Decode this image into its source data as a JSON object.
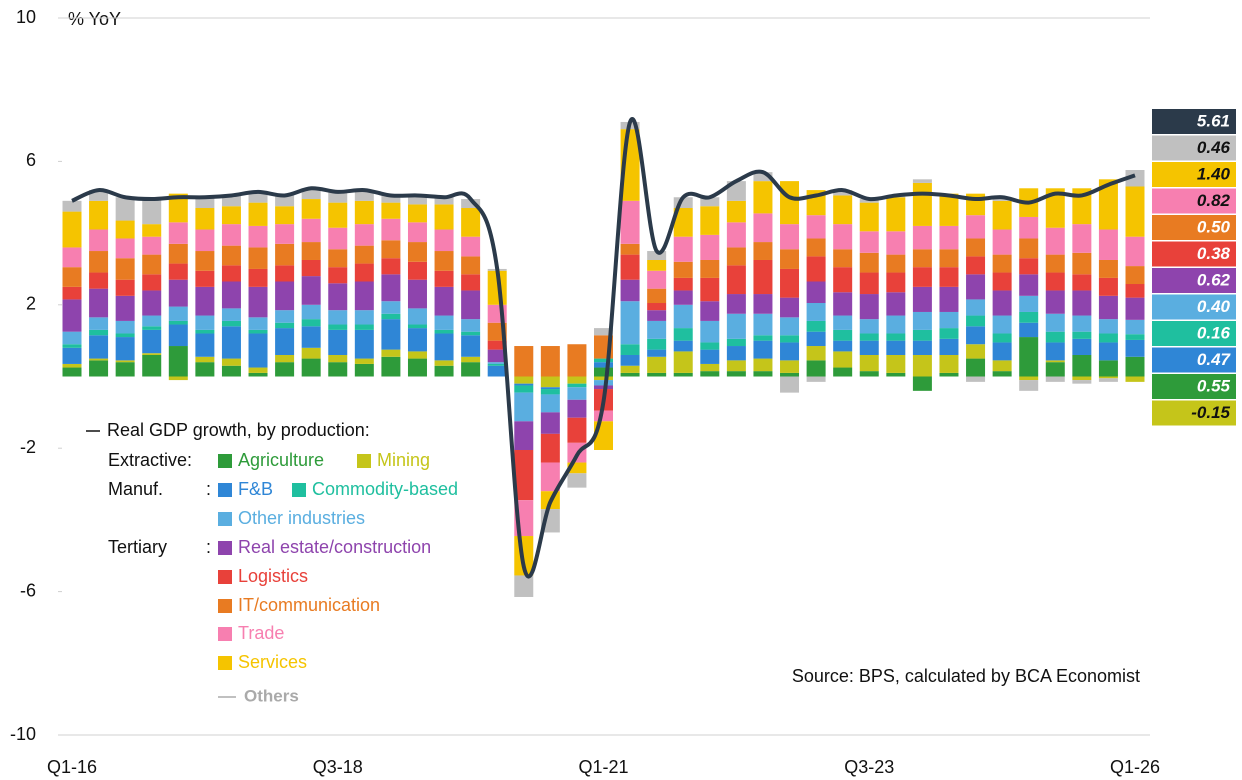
{
  "chart_data": {
    "type": "stacked_bar_line",
    "y_label": "% YoY",
    "source": "Source: BPS, calculated by BCA Economist",
    "legend_groups": [
      "Extractive:",
      "Manuf.",
      ":",
      "Tertiary",
      ":"
    ],
    "categories": [
      "Q1-16",
      null,
      null,
      null,
      null,
      null,
      null,
      null,
      null,
      null,
      "Q3-18",
      null,
      null,
      null,
      null,
      null,
      null,
      null,
      null,
      null,
      "Q1-21",
      null,
      null,
      null,
      null,
      null,
      null,
      null,
      null,
      null,
      "Q3-23",
      null,
      null,
      null,
      null,
      null,
      null,
      null,
      null,
      null,
      "Q1-26"
    ],
    "ylim": [
      -10,
      10
    ],
    "yticks": [
      10,
      6,
      2,
      -2,
      -6,
      -10
    ],
    "series": [
      {
        "name": "Agriculture",
        "color": "#2e9b3a",
        "values": [
          0.25,
          0.45,
          0.4,
          0.6,
          0.85,
          0.4,
          0.3,
          0.1,
          0.4,
          0.5,
          0.4,
          0.35,
          0.55,
          0.5,
          0.3,
          0.4,
          0,
          0,
          0,
          0,
          0.25,
          0.1,
          0.1,
          0.1,
          0.15,
          0.15,
          0.15,
          0.1,
          0.45,
          0.25,
          0.15,
          0.1,
          -0.4,
          0.1,
          0.5,
          0.15,
          1.1,
          0.4,
          0.6,
          0.45,
          0.55
        ]
      },
      {
        "name": "Mining",
        "color": "#c5c51a",
        "values": [
          0.1,
          0.05,
          0.05,
          0.05,
          -0.1,
          0.15,
          0.2,
          0.15,
          0.2,
          0.3,
          0.2,
          0.15,
          0.2,
          0.2,
          0.15,
          0.15,
          0,
          -0.2,
          -0.3,
          -0.2,
          -0.1,
          0.2,
          0.45,
          0.6,
          0.2,
          0.3,
          0.35,
          0.35,
          0.4,
          0.45,
          0.45,
          0.5,
          0.6,
          0.5,
          0.4,
          0.3,
          -0.1,
          0.05,
          -0.1,
          -0.05,
          -0.15
        ]
      },
      {
        "name": "F&B",
        "color": "#2f86d6",
        "values": [
          0.45,
          0.65,
          0.65,
          0.65,
          0.6,
          0.65,
          0.9,
          0.95,
          0.75,
          0.6,
          0.7,
          0.8,
          0.85,
          0.65,
          0.75,
          0.6,
          0.3,
          -0.05,
          -0.05,
          0,
          0.15,
          0.3,
          0.2,
          0.3,
          0.4,
          0.4,
          0.5,
          0.5,
          0.4,
          0.3,
          0.4,
          0.4,
          0.4,
          0.45,
          0.5,
          0.5,
          0.4,
          0.5,
          0.45,
          0.5,
          0.47
        ]
      },
      {
        "name": "Commodity-based",
        "color": "#1fbf9f",
        "values": [
          0.1,
          0.15,
          0.1,
          0.1,
          0.1,
          0.1,
          0.15,
          0.1,
          0.15,
          0.2,
          0.15,
          0.15,
          0.15,
          0.1,
          0.1,
          0.1,
          0.05,
          -0.2,
          -0.15,
          -0.1,
          0.1,
          0.3,
          0.3,
          0.35,
          0.2,
          0.2,
          0.15,
          0.2,
          0.3,
          0.3,
          0.2,
          0.2,
          0.3,
          0.3,
          0.3,
          0.25,
          0.3,
          0.3,
          0.2,
          0.25,
          0.16
        ]
      },
      {
        "name": "Other industries",
        "color": "#5aaee0",
        "values": [
          0.35,
          0.35,
          0.35,
          0.3,
          0.4,
          0.4,
          0.35,
          0.35,
          0.35,
          0.4,
          0.4,
          0.4,
          0.35,
          0.45,
          0.4,
          0.35,
          0.05,
          -0.8,
          -0.5,
          -0.35,
          -0.15,
          1.2,
          0.5,
          0.65,
          0.6,
          0.7,
          0.6,
          0.5,
          0.5,
          0.4,
          0.4,
          0.5,
          0.5,
          0.45,
          0.45,
          0.5,
          0.45,
          0.5,
          0.45,
          0.4,
          0.4
        ],
        "value_labels": [
          null,
          null,
          null,
          null,
          null,
          null,
          null,
          null,
          null,
          null,
          null,
          null,
          null,
          null,
          null,
          null,
          null,
          null,
          null,
          null,
          null,
          null,
          null,
          null,
          null,
          null,
          null,
          null,
          null,
          null,
          null,
          null,
          null,
          null,
          null,
          null,
          null,
          null,
          null,
          null,
          "0.40"
        ]
      },
      {
        "name": "Real estate/construction",
        "color": "#8e44ad",
        "values": [
          0.9,
          0.8,
          0.7,
          0.7,
          0.75,
          0.8,
          0.75,
          0.85,
          0.8,
          0.8,
          0.75,
          0.8,
          0.75,
          0.8,
          0.8,
          0.8,
          0.35,
          -0.8,
          -0.6,
          -0.5,
          -0.1,
          0.6,
          0.3,
          0.4,
          0.55,
          0.55,
          0.55,
          0.55,
          0.6,
          0.65,
          0.7,
          0.65,
          0.7,
          0.7,
          0.7,
          0.7,
          0.6,
          0.65,
          0.7,
          0.65,
          0.62
        ]
      },
      {
        "name": "Logistics",
        "color": "#e8413a",
        "values": [
          0.35,
          0.45,
          0.45,
          0.45,
          0.45,
          0.45,
          0.45,
          0.5,
          0.45,
          0.45,
          0.45,
          0.5,
          0.45,
          0.5,
          0.45,
          0.45,
          0.25,
          -1.4,
          -0.8,
          -0.7,
          -0.6,
          0.7,
          0.2,
          0.35,
          0.65,
          0.8,
          0.95,
          0.8,
          0.7,
          0.7,
          0.6,
          0.55,
          0.55,
          0.55,
          0.5,
          0.5,
          0.45,
          0.5,
          0.45,
          0.5,
          0.38
        ]
      },
      {
        "name": "IT/communication",
        "color": "#e87b22",
        "values": [
          0.55,
          0.6,
          0.6,
          0.55,
          0.55,
          0.55,
          0.55,
          0.6,
          0.6,
          0.5,
          0.5,
          0.5,
          0.5,
          0.55,
          0.55,
          0.5,
          0.5,
          0.85,
          0.85,
          0.9,
          0.65,
          0.3,
          0.4,
          0.45,
          0.5,
          0.5,
          0.5,
          0.55,
          0.5,
          0.5,
          0.55,
          0.5,
          0.5,
          0.5,
          0.5,
          0.5,
          0.55,
          0.5,
          0.6,
          0.5,
          0.5
        ],
        "value_labels": [
          null,
          null,
          null,
          null,
          null,
          null,
          null,
          null,
          null,
          null,
          null,
          null,
          null,
          null,
          null,
          null,
          null,
          null,
          null,
          null,
          null,
          null,
          null,
          null,
          null,
          null,
          null,
          null,
          null,
          null,
          null,
          null,
          null,
          null,
          null,
          null,
          null,
          null,
          null,
          null,
          "0.50"
        ]
      },
      {
        "name": "Trade",
        "color": "#f77fb0",
        "values": [
          0.55,
          0.6,
          0.55,
          0.5,
          0.6,
          0.6,
          0.6,
          0.6,
          0.55,
          0.65,
          0.6,
          0.6,
          0.6,
          0.55,
          0.6,
          0.55,
          0.5,
          -1.0,
          -0.8,
          -0.55,
          -0.3,
          1.2,
          0.5,
          0.7,
          0.7,
          0.7,
          0.8,
          0.7,
          0.65,
          0.7,
          0.6,
          0.65,
          0.65,
          0.65,
          0.65,
          0.7,
          0.6,
          0.75,
          0.8,
          0.85,
          0.82
        ]
      },
      {
        "name": "Services",
        "color": "#f5c400",
        "values": [
          1.0,
          0.8,
          0.5,
          0.35,
          0.8,
          0.6,
          0.5,
          0.65,
          0.5,
          0.55,
          0.7,
          0.65,
          0.45,
          0.5,
          0.7,
          0.8,
          0.95,
          -1.1,
          -0.5,
          -0.3,
          -0.8,
          2.0,
          0.3,
          0.8,
          0.8,
          0.6,
          0.9,
          1.2,
          0.7,
          0.8,
          0.8,
          0.95,
          1.2,
          0.9,
          0.6,
          0.8,
          0.8,
          1.1,
          1.0,
          1.4,
          1.4
        ],
        "value_labels": [
          null,
          null,
          null,
          null,
          null,
          null,
          null,
          null,
          null,
          null,
          null,
          null,
          null,
          null,
          null,
          null,
          null,
          null,
          null,
          null,
          null,
          null,
          null,
          null,
          null,
          null,
          null,
          null,
          null,
          null,
          null,
          null,
          null,
          null,
          null,
          null,
          null,
          null,
          null,
          null,
          "1.40"
        ]
      },
      {
        "name": "Others",
        "color": "#c0c0c0",
        "values": [
          0.3,
          0.3,
          0.65,
          0.7,
          0,
          0.3,
          0.3,
          0.3,
          0.3,
          0.3,
          0.3,
          0.3,
          0.2,
          0.25,
          0.2,
          0.25,
          0.05,
          -0.6,
          -0.65,
          -0.4,
          0.2,
          0.2,
          0.25,
          0.3,
          0.25,
          0.55,
          0.25,
          -0.45,
          -0.15,
          0.15,
          0.1,
          0.05,
          0.1,
          0,
          -0.15,
          0.1,
          -0.3,
          -0.15,
          -0.1,
          -0.1,
          0.46
        ]
      }
    ],
    "line": {
      "name": "Real GDP growth, by production:",
      "color": "#2b3a4a",
      "values": [
        4.9,
        5.2,
        5.0,
        4.95,
        5.0,
        5.0,
        5.05,
        5.15,
        5.05,
        5.25,
        5.15,
        5.2,
        5.05,
        5.05,
        5.0,
        4.95,
        3.0,
        -5.3,
        -3.5,
        -2.2,
        -0.7,
        7.1,
        3.5,
        5.0,
        5.0,
        5.45,
        5.7,
        5.0,
        5.05,
        5.2,
        4.95,
        5.05,
        5.1,
        5.05,
        4.95,
        5.0,
        4.85,
        5.1,
        5.05,
        5.35,
        5.61
      ]
    }
  }
}
